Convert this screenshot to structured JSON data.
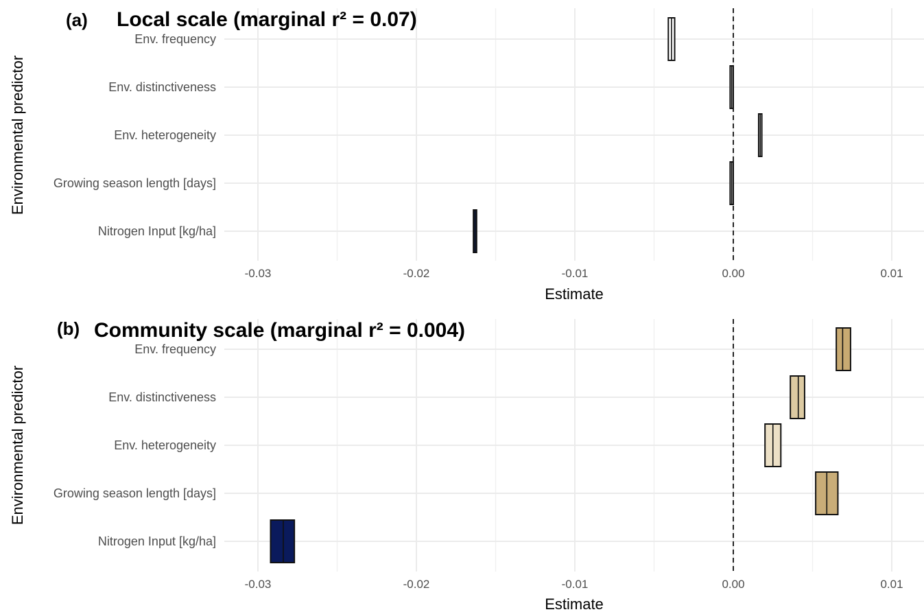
{
  "chart_data": [
    {
      "type": "bar",
      "tag": "(a)",
      "title": "Local scale (marginal r² = 0.07)",
      "xlabel": "Estimate",
      "ylabel": "Environmental predictor",
      "xlim": [
        -0.032,
        0.012
      ],
      "x_ticks": [
        -0.03,
        -0.02,
        -0.01,
        0.0,
        0.01
      ],
      "x_tick_labels": [
        "-0.03",
        "-0.02",
        "-0.01",
        "0.00",
        "0.01"
      ],
      "reference_line": 0.0,
      "grid": true,
      "categories": [
        "Env. frequency",
        "Env. distinctiveness",
        "Env. heterogeneity",
        "Growing season length [days]",
        "Nitrogen Input [kg/ha]"
      ],
      "estimates": [
        -0.0039,
        -0.0001,
        0.0017,
        -0.0001,
        -0.0163
      ],
      "lower": [
        -0.0041,
        -0.0002,
        0.0016,
        -0.0002,
        -0.0164
      ],
      "upper": [
        -0.0037,
        0.0,
        0.0018,
        0.0,
        -0.0162
      ],
      "colors": [
        "#ffffff",
        "#ffffff",
        "#ffffff",
        "#ffffff",
        "#0d1f5c"
      ]
    },
    {
      "type": "bar",
      "tag": "(b)",
      "title": "Community scale (marginal r² = 0.004)",
      "xlabel": "Estimate",
      "ylabel": "Environmental predictor",
      "xlim": [
        -0.032,
        0.012
      ],
      "x_ticks": [
        -0.03,
        -0.02,
        -0.01,
        0.0,
        0.01
      ],
      "x_tick_labels": [
        "-0.03",
        "-0.02",
        "-0.01",
        "0.00",
        "0.01"
      ],
      "reference_line": 0.0,
      "grid": true,
      "categories": [
        "Env. frequency",
        "Env. distinctiveness",
        "Env. heterogeneity",
        "Growing season length [days]",
        "Nitrogen Input [kg/ha]"
      ],
      "estimates": [
        0.0069,
        0.0041,
        0.0025,
        0.0059,
        -0.0284
      ],
      "lower": [
        0.0065,
        0.0036,
        0.002,
        0.0052,
        -0.0292
      ],
      "upper": [
        0.0074,
        0.0045,
        0.003,
        0.0066,
        -0.0277
      ],
      "colors": [
        "#c8aa72",
        "#dccaa2",
        "#ece0c6",
        "#c9ad78",
        "#0a1a5c"
      ]
    }
  ]
}
